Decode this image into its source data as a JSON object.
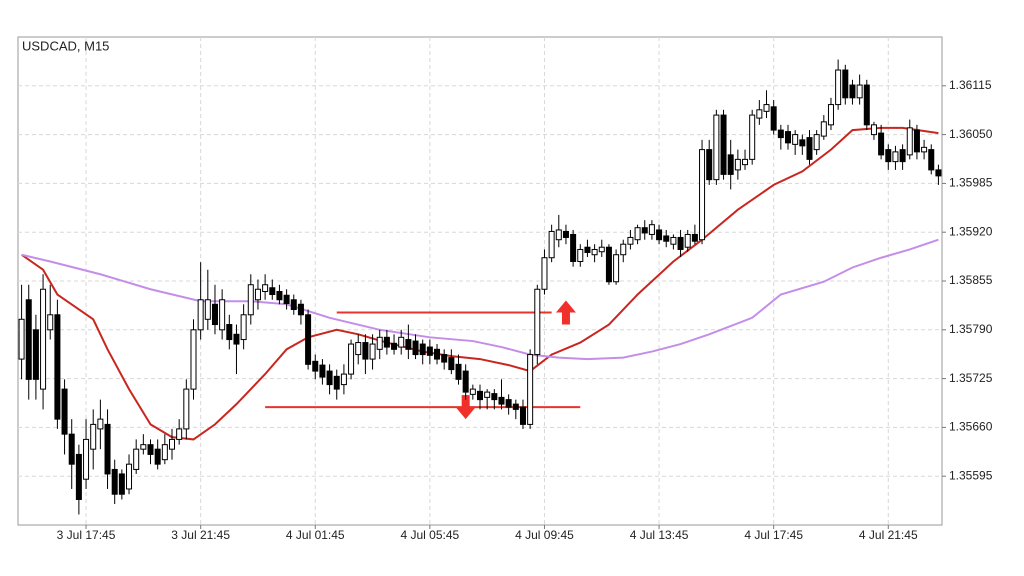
{
  "chart_data": {
    "type": "candlestick",
    "title": "USDCAD, M15",
    "categories": [
      null,
      null,
      null,
      null,
      null,
      null,
      null,
      null,
      null,
      "3 Jul 17:45",
      null,
      null,
      null,
      null,
      null,
      null,
      null,
      null,
      null,
      null,
      null,
      null,
      null,
      null,
      null,
      "3 Jul 21:45",
      null,
      null,
      null,
      null,
      null,
      null,
      null,
      null,
      null,
      null,
      null,
      null,
      null,
      null,
      null,
      "4 Jul 01:45",
      null,
      null,
      null,
      null,
      null,
      null,
      null,
      null,
      null,
      null,
      null,
      null,
      null,
      null,
      null,
      "4 Jul 05:45",
      null,
      null,
      null,
      null,
      null,
      null,
      null,
      null,
      null,
      null,
      null,
      null,
      null,
      null,
      null,
      "4 Jul 09:45",
      null,
      null,
      null,
      null,
      null,
      null,
      null,
      null,
      null,
      null,
      null,
      null,
      null,
      null,
      null,
      "4 Jul 13:45",
      null,
      null,
      null,
      null,
      null,
      null,
      null,
      null,
      null,
      null,
      null,
      null,
      null,
      null,
      null,
      "4 Jul 17:45",
      null,
      null,
      null,
      null,
      null,
      null,
      null,
      null,
      null,
      null,
      null,
      null,
      null,
      null,
      null,
      "4 Jul 21:45",
      null,
      null,
      null,
      null,
      null,
      null,
      null
    ],
    "open": [
      1.35751,
      1.3583,
      1.3579,
      1.35711,
      1.3579,
      1.3581,
      1.35711,
      1.35651,
      1.35624,
      1.35591,
      1.35631,
      1.35658,
      1.35664,
      1.35604,
      1.35598,
      1.35578,
      1.35604,
      1.35631,
      1.35637,
      1.35631,
      1.35617,
      1.35631,
      1.35644,
      1.35658,
      1.35711,
      1.3579,
      1.35804,
      1.35824,
      1.3579,
      1.35797,
      1.35784,
      1.35777,
      1.3581,
      1.3583,
      1.35841,
      1.35846,
      1.35841,
      1.35836,
      1.3583,
      1.35824,
      1.3581,
      1.35748,
      1.35743,
      1.35735,
      1.35728,
      1.35717,
      1.35731,
      1.35757,
      1.35773,
      1.35751,
      1.35764,
      1.3578,
      1.35772,
      1.35767,
      1.35777,
      1.35775,
      1.35771,
      1.35767,
      1.35764,
      1.35757,
      1.35753,
      1.35744,
      1.35735,
      1.35704,
      1.35708,
      1.357,
      1.35705,
      1.357,
      1.35697,
      1.35691,
      1.35687,
      1.35664,
      1.35757,
      1.35844,
      1.35886,
      1.3591,
      1.35921,
      1.35917,
      1.35881,
      1.359,
      1.3589,
      1.35894,
      1.359,
      1.35854,
      1.3589,
      1.35904,
      1.3591,
      1.35926,
      1.35917,
      1.35923,
      1.35915,
      1.35904,
      1.35913,
      1.359,
      1.35917,
      1.3591,
      1.3603,
      1.3599,
      1.36076,
      1.36023,
      1.36003,
      1.3601,
      1.36017,
      1.36072,
      1.36081,
      1.36087,
      1.36056,
      1.36054,
      1.36037,
      1.36043,
      1.36046,
      1.3603,
      1.36048,
      1.36063,
      1.3609,
      1.36136,
      1.36116,
      1.36099,
      1.36116,
      1.3605,
      1.36052,
      1.3603,
      1.36014,
      1.3603,
      1.36023,
      1.36056,
      1.36027,
      1.3603,
      1.36003
    ],
    "high": [
      1.3585,
      1.3585,
      1.3581,
      1.35864,
      1.3585,
      1.3583,
      1.35724,
      1.35671,
      1.35637,
      1.35671,
      1.35684,
      1.35697,
      1.35684,
      1.35617,
      1.35604,
      1.35624,
      1.35644,
      1.35651,
      1.35644,
      1.35644,
      1.35651,
      1.35658,
      1.35671,
      1.35724,
      1.35804,
      1.3588,
      1.3587,
      1.3585,
      1.35844,
      1.3581,
      1.35797,
      1.35824,
      1.35864,
      1.35857,
      1.35864,
      1.35857,
      1.3585,
      1.35844,
      1.35837,
      1.3583,
      1.35817,
      1.35757,
      1.35751,
      1.35744,
      1.35737,
      1.35744,
      1.35777,
      1.35784,
      1.35784,
      1.35784,
      1.3579,
      1.3579,
      1.35784,
      1.3579,
      1.35797,
      1.35784,
      1.35777,
      1.35777,
      1.35771,
      1.35764,
      1.35764,
      1.35757,
      1.35744,
      1.35717,
      1.35717,
      1.35711,
      1.35711,
      1.35724,
      1.35704,
      1.35697,
      1.35697,
      1.35764,
      1.3585,
      1.35897,
      1.3593,
      1.35943,
      1.3593,
      1.35923,
      1.35904,
      1.3591,
      1.35904,
      1.3591,
      1.35904,
      1.35897,
      1.3591,
      1.35923,
      1.3593,
      1.35936,
      1.35936,
      1.3593,
      1.35923,
      1.35917,
      1.35923,
      1.35923,
      1.3593,
      1.36043,
      1.36043,
      1.36083,
      1.36083,
      1.36043,
      1.3603,
      1.3603,
      1.36083,
      1.36096,
      1.36109,
      1.36096,
      1.36063,
      1.36063,
      1.36056,
      1.3605,
      1.36056,
      1.36056,
      1.36076,
      1.36099,
      1.3615,
      1.36143,
      1.36123,
      1.3613,
      1.36123,
      1.36067,
      1.36063,
      1.36037,
      1.36035,
      1.36037,
      1.3607,
      1.36063,
      1.36043,
      1.36037,
      1.3601
    ],
    "low": [
      1.35724,
      1.35697,
      1.35697,
      1.35684,
      1.35777,
      1.35658,
      1.35624,
      1.35578,
      1.35544,
      1.35578,
      1.35604,
      1.35631,
      1.35578,
      1.35558,
      1.35564,
      1.35571,
      1.35598,
      1.35624,
      1.35611,
      1.35604,
      1.35611,
      1.35617,
      1.35637,
      1.35644,
      1.35697,
      1.35777,
      1.3579,
      1.35784,
      1.35777,
      1.35764,
      1.35731,
      1.35764,
      1.35797,
      1.35817,
      1.3583,
      1.3583,
      1.35824,
      1.35817,
      1.3581,
      1.35797,
      1.35737,
      1.35724,
      1.35717,
      1.35704,
      1.35697,
      1.35704,
      1.35724,
      1.35744,
      1.35731,
      1.35737,
      1.35751,
      1.35757,
      1.35757,
      1.35757,
      1.35751,
      1.35751,
      1.35744,
      1.35744,
      1.35744,
      1.35737,
      1.35731,
      1.35717,
      1.35697,
      1.35697,
      1.35684,
      1.35684,
      1.35684,
      1.35684,
      1.35677,
      1.35671,
      1.35658,
      1.35658,
      1.35744,
      1.35837,
      1.3588,
      1.359,
      1.35904,
      1.35874,
      1.35874,
      1.35887,
      1.3588,
      1.35887,
      1.3585,
      1.3585,
      1.3588,
      1.35897,
      1.35904,
      1.3591,
      1.3591,
      1.35904,
      1.359,
      1.35897,
      1.35887,
      1.35894,
      1.35904,
      1.35904,
      1.35983,
      1.35983,
      1.3599,
      1.35977,
      1.3599,
      1.36003,
      1.3601,
      1.36063,
      1.36072,
      1.3605,
      1.3603,
      1.3603,
      1.36023,
      1.36023,
      1.3601,
      1.36023,
      1.36043,
      1.36056,
      1.36083,
      1.3609,
      1.3609,
      1.3609,
      1.36056,
      1.36043,
      1.36017,
      1.36003,
      1.36003,
      1.36003,
      1.36017,
      1.36017,
      1.36017,
      1.35997,
      1.35983
    ],
    "close": [
      1.35804,
      1.35724,
      1.35724,
      1.35844,
      1.3581,
      1.35671,
      1.35651,
      1.35611,
      1.35564,
      1.35644,
      1.35664,
      1.35671,
      1.35598,
      1.35571,
      1.35571,
      1.35611,
      1.35631,
      1.35637,
      1.35624,
      1.35611,
      1.35637,
      1.35644,
      1.35658,
      1.35711,
      1.3579,
      1.3583,
      1.3583,
      1.35797,
      1.3583,
      1.35777,
      1.35771,
      1.3581,
      1.3585,
      1.35844,
      1.3585,
      1.35837,
      1.3583,
      1.35825,
      1.35817,
      1.3581,
      1.35744,
      1.35735,
      1.35727,
      1.35717,
      1.35711,
      1.35731,
      1.35771,
      1.35773,
      1.35751,
      1.35771,
      1.3578,
      1.35767,
      1.35764,
      1.3578,
      1.35764,
      1.35757,
      1.35757,
      1.35756,
      1.35751,
      1.35747,
      1.35737,
      1.35724,
      1.35707,
      1.35711,
      1.35697,
      1.35707,
      1.35697,
      1.35691,
      1.35687,
      1.35684,
      1.35664,
      1.35757,
      1.35844,
      1.35886,
      1.35921,
      1.35923,
      1.35913,
      1.35881,
      1.35897,
      1.35893,
      1.35897,
      1.359,
      1.35854,
      1.3589,
      1.35904,
      1.35913,
      1.35926,
      1.35919,
      1.3593,
      1.3591,
      1.35908,
      1.35913,
      1.35897,
      1.35917,
      1.35908,
      1.3603,
      1.3599,
      1.36076,
      1.35997,
      1.35997,
      1.36017,
      1.36017,
      1.36076,
      1.36083,
      1.3609,
      1.36056,
      1.36046,
      1.36039,
      1.3605,
      1.36035,
      1.36017,
      1.3605,
      1.36067,
      1.3609,
      1.36136,
      1.36099,
      1.36099,
      1.36116,
      1.36063,
      1.36063,
      1.36023,
      1.36014,
      1.36027,
      1.36014,
      1.36059,
      1.36027,
      1.36033,
      1.36003,
      1.35995
    ],
    "up_color": "#ffffff",
    "down_color": "#000000",
    "ylim": [
      1.3553,
      1.3618
    ],
    "yticks": [
      1.35595,
      {
        "value": 1.3566,
        "label": "1.35660"
      },
      1.35725,
      {
        "value": 1.3579,
        "label": "1.35790"
      },
      1.35855,
      {
        "value": 1.3592,
        "label": "1.35920"
      },
      1.35985,
      {
        "value": 1.3605,
        "label": "1.36050"
      },
      1.36115
    ],
    "grid": true,
    "lines": [
      {
        "color": "#c8261e",
        "x": [
          0,
          3,
          5,
          10,
          12,
          15,
          18,
          21,
          24,
          27,
          30,
          34,
          37,
          40,
          44,
          47,
          51,
          56,
          60,
          64,
          68,
          71,
          74,
          78,
          82,
          86,
          91,
          95,
          100,
          105,
          109,
          113,
          116,
          120,
          123,
          128
        ],
        "values": [
          1.3589,
          1.3587,
          1.35837,
          1.35804,
          1.35764,
          1.35711,
          1.35664,
          1.35647,
          1.35644,
          1.35664,
          1.35691,
          1.35731,
          1.35764,
          1.3578,
          1.3579,
          1.35784,
          1.35773,
          1.35761,
          1.35755,
          1.35751,
          1.35743,
          1.35735,
          1.35757,
          1.35773,
          1.35797,
          1.35837,
          1.35881,
          1.3591,
          1.3595,
          1.35983,
          1.36001,
          1.3603,
          1.36056,
          1.36059,
          1.36059,
          1.36052
        ]
      },
      {
        "color": "#c48ee8",
        "x": [
          0,
          4,
          11,
          18,
          25,
          32,
          37,
          43,
          50,
          57,
          63,
          67,
          71,
          75,
          79,
          84,
          88,
          92,
          96,
          102,
          106,
          112,
          116,
          120,
          124,
          128
        ],
        "values": [
          1.3589,
          1.35881,
          1.35864,
          1.35844,
          1.35828,
          1.35828,
          1.35824,
          1.35806,
          1.3579,
          1.3578,
          1.35775,
          1.35767,
          1.35757,
          1.35753,
          1.35751,
          1.35753,
          1.35761,
          1.35771,
          1.35784,
          1.35806,
          1.35837,
          1.35854,
          1.35873,
          1.35886,
          1.35897,
          1.3591
        ]
      }
    ],
    "levels": [
      {
        "value": 1.35813,
        "x": [
          44,
          74
        ],
        "color": "#e8342c"
      },
      {
        "value": 1.35687,
        "x": [
          34,
          78
        ],
        "color": "#e8342c"
      }
    ],
    "arrows": [
      {
        "direction": "up",
        "x": 76,
        "value": 1.35813,
        "color": "#f0302a"
      },
      {
        "direction": "down",
        "x": 62,
        "value": 1.35687,
        "color": "#f0302a"
      }
    ]
  }
}
